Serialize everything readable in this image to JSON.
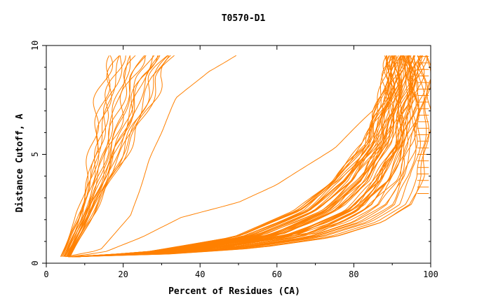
{
  "chart_data": {
    "type": "line",
    "title": "T0570-D1",
    "xlabel": "Percent of Residues (CA)",
    "ylabel": "Distance Cutoff, A",
    "xlim": [
      0,
      100
    ],
    "ylim": [
      0,
      10
    ],
    "x_ticks": [
      0,
      20,
      40,
      60,
      80,
      100
    ],
    "y_ticks": [
      0,
      5,
      10
    ],
    "x_minor_step": 10,
    "y_minor_step": 1,
    "line_color": "#ff8000",
    "series_groups": [
      {
        "name": "left cluster",
        "count": 22,
        "control_points": [
          [
            [
              4,
              0.3
            ],
            [
              8,
              2
            ],
            [
              11,
              4
            ],
            [
              13,
              6.5
            ],
            [
              15,
              8.5
            ],
            [
              17,
              9.6
            ]
          ],
          [
            [
              6,
              0.3
            ],
            [
              13,
              2.5
            ],
            [
              20,
              4.8
            ],
            [
              26,
              6.8
            ],
            [
              30,
              8.6
            ],
            [
              34,
              9.6
            ]
          ]
        ]
      },
      {
        "name": "outlier low",
        "count": 1,
        "control_points": [
          [
            [
              6,
              0.3
            ],
            [
              15,
              0.5
            ],
            [
              25,
              1.2
            ],
            [
              35,
              2.1
            ],
            [
              50,
              2.8
            ],
            [
              60,
              3.6
            ],
            [
              75,
              5.3
            ],
            [
              85,
              7
            ],
            [
              92,
              9.6
            ]
          ]
        ]
      },
      {
        "name": "outlier mid",
        "count": 1,
        "control_points": [
          [
            [
              5,
              0.3
            ],
            [
              14,
              0.6
            ],
            [
              22,
              2.2
            ],
            [
              27,
              4.8
            ],
            [
              31,
              6.5
            ],
            [
              34,
              7.6
            ],
            [
              42,
              8.8
            ],
            [
              50,
              9.6
            ]
          ]
        ]
      },
      {
        "name": "right bundle",
        "count": 60,
        "control_points": [
          [
            [
              6,
              0.3
            ],
            [
              25,
              0.45
            ],
            [
              50,
              0.8
            ],
            [
              70,
              1.4
            ],
            [
              82,
              2.4
            ],
            [
              90,
              3.8
            ],
            [
              94,
              5.5
            ],
            [
              96,
              7.5
            ],
            [
              97,
              9.6
            ]
          ],
          [
            [
              8,
              0.3
            ],
            [
              25,
              0.5
            ],
            [
              48,
              1.2
            ],
            [
              64,
              2.4
            ],
            [
              74,
              3.8
            ],
            [
              82,
              5.5
            ],
            [
              86,
              7.2
            ],
            [
              89,
              9.6
            ]
          ],
          [
            [
              7,
              0.3
            ],
            [
              30,
              0.4
            ],
            [
              55,
              0.7
            ],
            [
              75,
              1.2
            ],
            [
              88,
              1.9
            ],
            [
              95,
              2.7
            ],
            [
              98,
              4
            ],
            [
              99.5,
              6.5
            ],
            [
              100,
              9.6
            ]
          ]
        ]
      }
    ]
  }
}
